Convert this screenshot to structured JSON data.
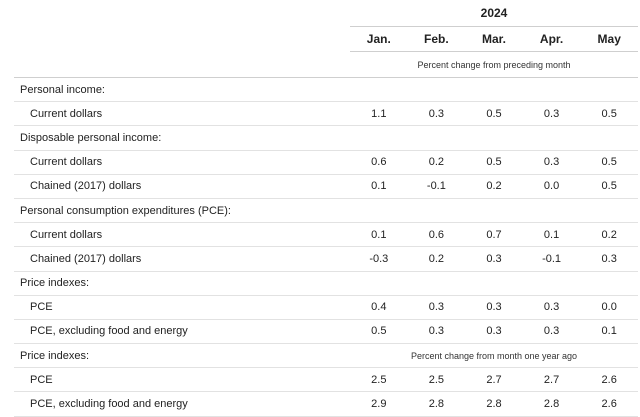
{
  "header": {
    "year": "2024",
    "months": [
      "Jan.",
      "Feb.",
      "Mar.",
      "Apr.",
      "May"
    ],
    "subtitle": "Percent change from preceding month"
  },
  "rows": [
    {
      "label": "Personal income:"
    },
    {
      "label": "Current dollars",
      "values": [
        "1.1",
        "0.3",
        "0.5",
        "0.3",
        "0.5"
      ]
    },
    {
      "label": "Disposable personal income:"
    },
    {
      "label": "Current dollars",
      "values": [
        "0.6",
        "0.2",
        "0.5",
        "0.3",
        "0.5"
      ]
    },
    {
      "label": "Chained (2017) dollars",
      "values": [
        "0.1",
        "-0.1",
        "0.2",
        "0.0",
        "0.5"
      ]
    },
    {
      "label": "Personal consumption expenditures (PCE):"
    },
    {
      "label": "Current dollars",
      "values": [
        "0.1",
        "0.6",
        "0.7",
        "0.1",
        "0.2"
      ]
    },
    {
      "label": "Chained (2017) dollars",
      "values": [
        "-0.3",
        "0.2",
        "0.3",
        "-0.1",
        "0.3"
      ]
    },
    {
      "label": "Price indexes:"
    },
    {
      "label": "PCE",
      "values": [
        "0.4",
        "0.3",
        "0.3",
        "0.3",
        "0.0"
      ]
    },
    {
      "label": "PCE, excluding food and energy",
      "values": [
        "0.5",
        "0.3",
        "0.3",
        "0.3",
        "0.1"
      ]
    },
    {
      "label": "Price indexes:",
      "note": "Percent change from month one year ago"
    },
    {
      "label": "PCE",
      "values": [
        "2.5",
        "2.5",
        "2.7",
        "2.7",
        "2.6"
      ]
    },
    {
      "label": "PCE, excluding food and energy",
      "values": [
        "2.9",
        "2.8",
        "2.8",
        "2.8",
        "2.6"
      ]
    }
  ]
}
